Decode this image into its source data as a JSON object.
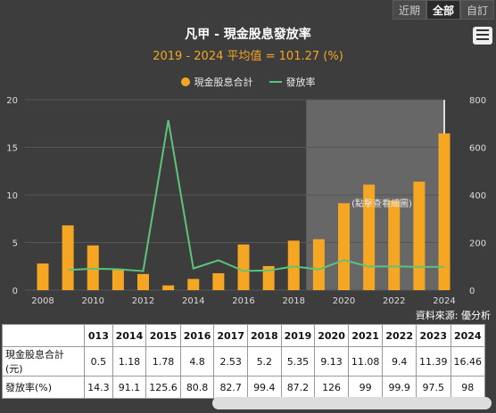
{
  "range_tabs": [
    "近期",
    "全部",
    "自訂"
  ],
  "title": "凡甲 - 現金股息發放率",
  "subtitle": "2019 - 2024 平均值 = 101.27 (%)",
  "legend": [
    "現金股息合計",
    "發放率"
  ],
  "shaded_label": "(點擊查看細圖)",
  "source": "資料來源: 優分析",
  "colors": {
    "bar": "#f5a623",
    "line": "#5cc47a",
    "bg": "#3d3d3d"
  },
  "chart_data": {
    "type": "bar+line",
    "x_tick_labels": [
      "2008",
      "2010",
      "2012",
      "2014",
      "2016",
      "2018",
      "2020",
      "2022",
      "2024"
    ],
    "y_left_ticks": [
      "0",
      "5",
      "10",
      "15",
      "20"
    ],
    "y_right_ticks": [
      "0",
      "200",
      "400",
      "600",
      "800"
    ],
    "y_left_range": [
      0,
      20
    ],
    "y_right_range": [
      0,
      800
    ],
    "x_range": [
      2008,
      2024
    ],
    "highlight_range": [
      2019,
      2024
    ],
    "series": [
      {
        "name": "現金股息合計",
        "axis": "left",
        "x": [
          2008,
          2009,
          2010,
          2011,
          2012,
          2013,
          2014,
          2015,
          2016,
          2017,
          2018,
          2019,
          2020,
          2021,
          2022,
          2023,
          2024
        ],
        "values": [
          2.8,
          6.8,
          4.7,
          2.2,
          1.7,
          0.5,
          1.18,
          1.78,
          4.8,
          2.53,
          5.2,
          5.35,
          9.13,
          11.08,
          9.4,
          11.39,
          16.46
        ]
      },
      {
        "name": "發放率",
        "axis": "right",
        "x": [
          2009,
          2010,
          2011,
          2012,
          2013,
          2014,
          2015,
          2016,
          2017,
          2018,
          2019,
          2020,
          2021,
          2022,
          2023,
          2024
        ],
        "values": [
          85,
          90,
          88,
          80,
          714.3,
          91.1,
          125.6,
          80.8,
          82.7,
          99.4,
          87.2,
          126,
          99,
          99.9,
          97.5,
          98
        ]
      }
    ]
  },
  "table": {
    "header": [
      "",
      "013",
      "2014",
      "2015",
      "2016",
      "2017",
      "2018",
      "2019",
      "2020",
      "2021",
      "2022",
      "2023",
      "2024"
    ],
    "rows": [
      [
        "現金股息合計(元)",
        "0.5",
        "1.18",
        "1.78",
        "4.8",
        "2.53",
        "5.2",
        "5.35",
        "9.13",
        "11.08",
        "9.4",
        "11.39",
        "16.46"
      ],
      [
        "發放率(%)",
        "14.3",
        "91.1",
        "125.6",
        "80.8",
        "82.7",
        "99.4",
        "87.2",
        "126",
        "99",
        "99.9",
        "97.5",
        "98"
      ]
    ]
  }
}
